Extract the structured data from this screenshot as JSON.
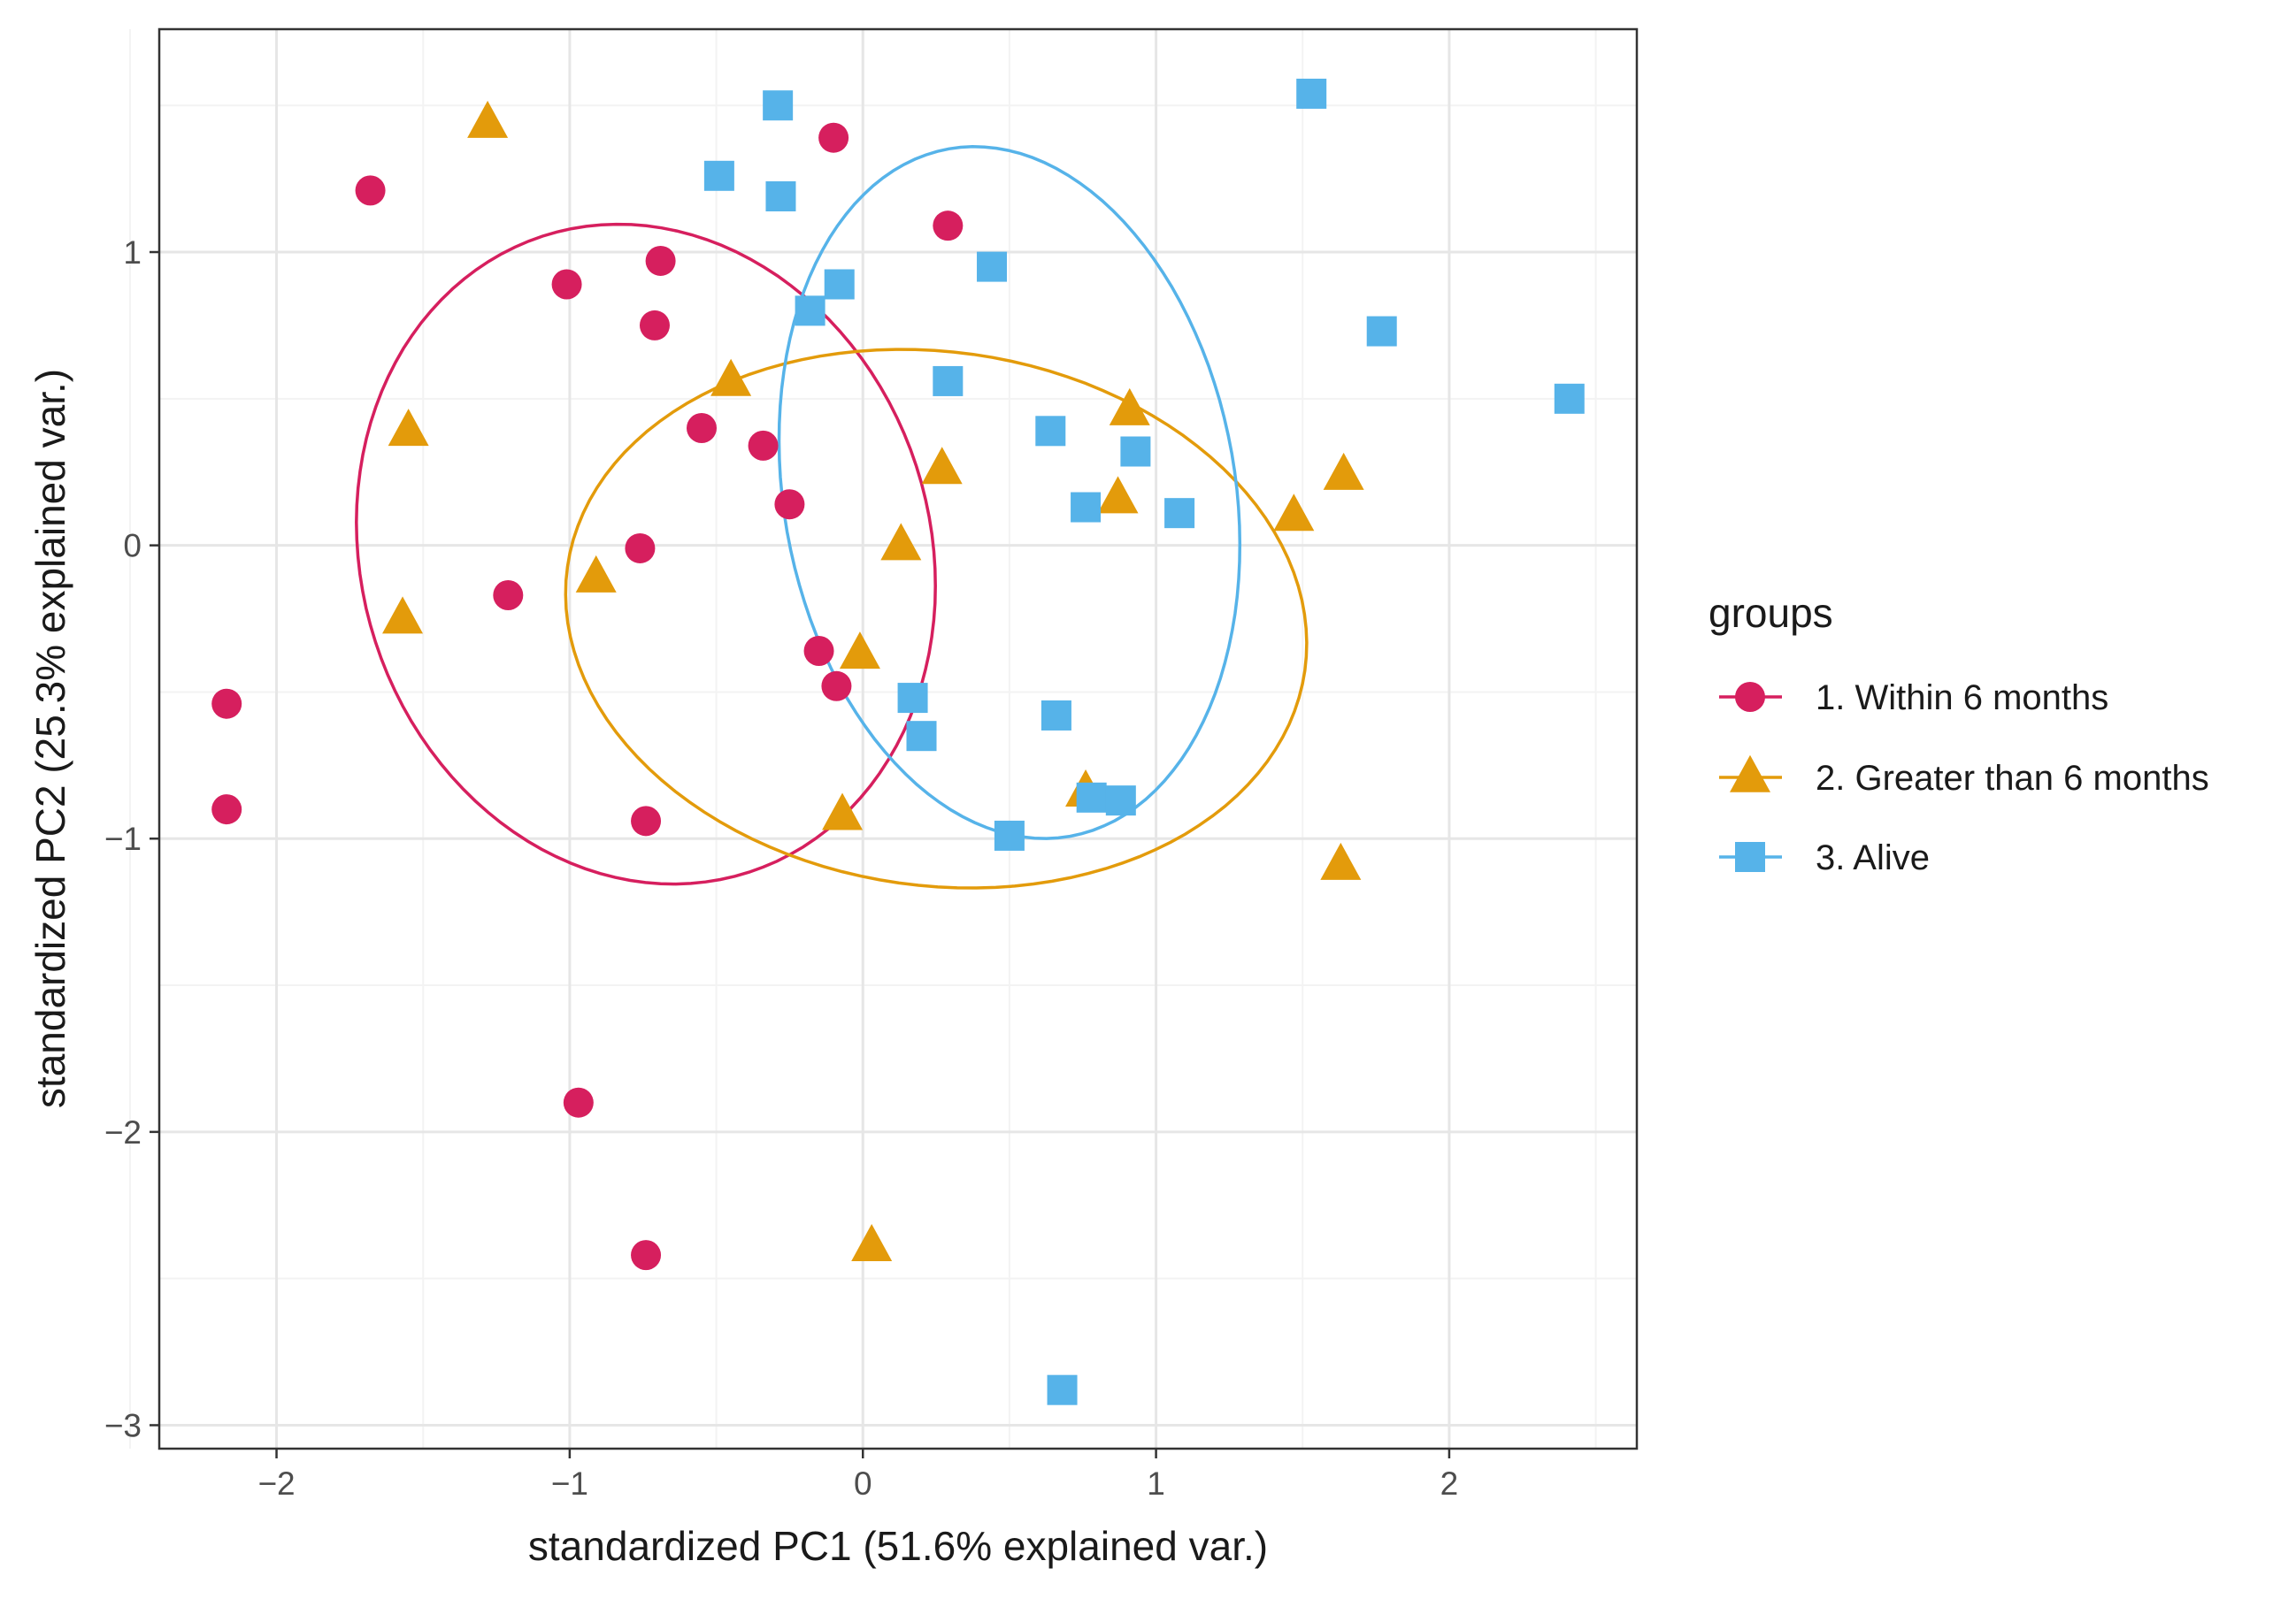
{
  "colors": {
    "group1": "#d61f5e",
    "group2": "#e39b0b",
    "group3": "#56b3e9",
    "grid_major": "#e6e6e6",
    "grid_minor": "#f3f3f3",
    "border": "#333333",
    "tick_text": "#4d4d4d",
    "axis_title": "#1a1a1a"
  },
  "chart_data": {
    "type": "scatter",
    "title": "",
    "xlabel": "standardized PC1 (51.6% explained var.)",
    "ylabel": "standardized PC2 (25.3% explained var.)",
    "xlim": [
      -2.4,
      2.64
    ],
    "ylim": [
      -3.08,
      1.76
    ],
    "xticks": [
      -2,
      -1,
      0,
      1,
      2
    ],
    "yticks": [
      1,
      0,
      -1,
      -2,
      -3
    ],
    "xtick_labels": [
      "−2",
      "−1",
      "0",
      "1",
      "2"
    ],
    "ytick_labels": [
      "1",
      "0",
      "−1",
      "−2",
      "−3"
    ],
    "grid": true,
    "legend": {
      "title": "groups",
      "position": "right",
      "entries": [
        "1. Within 6 months",
        "2. Greater than 6 months",
        "3. Alive"
      ]
    },
    "series": [
      {
        "name": "1. Within 6 months",
        "marker": "circle",
        "color_key": "group1",
        "points": [
          [
            -1.68,
            1.21
          ],
          [
            -0.1,
            1.39
          ],
          [
            0.29,
            1.09
          ],
          [
            -1.01,
            0.89
          ],
          [
            -0.69,
            0.97
          ],
          [
            -0.71,
            0.75
          ],
          [
            -0.55,
            0.4
          ],
          [
            -0.34,
            0.34
          ],
          [
            -0.25,
            0.14
          ],
          [
            -1.21,
            -0.17
          ],
          [
            -0.76,
            -0.01
          ],
          [
            -2.17,
            -0.54
          ],
          [
            -2.17,
            -0.9
          ],
          [
            -0.15,
            -0.36
          ],
          [
            -0.09,
            -0.48
          ],
          [
            -0.74,
            -0.94
          ],
          [
            -0.97,
            -1.9
          ],
          [
            -0.74,
            -2.42
          ]
        ],
        "ellipse": {
          "cx": -0.74,
          "cy": -0.03,
          "rx": 0.97,
          "ry": 1.14,
          "angle_deg": 18
        }
      },
      {
        "name": "2. Greater than 6 months",
        "marker": "triangle",
        "color_key": "group2",
        "points": [
          [
            -1.28,
            1.44
          ],
          [
            -1.55,
            0.39
          ],
          [
            -0.45,
            0.56
          ],
          [
            -1.57,
            -0.25
          ],
          [
            -0.91,
            -0.11
          ],
          [
            0.13,
            0.0
          ],
          [
            0.27,
            0.26
          ],
          [
            0.91,
            0.46
          ],
          [
            0.87,
            0.16
          ],
          [
            1.64,
            0.24
          ],
          [
            1.47,
            0.1
          ],
          [
            -0.01,
            -0.37
          ],
          [
            -0.07,
            -0.92
          ],
          [
            0.76,
            -0.84
          ],
          [
            1.63,
            -1.09
          ],
          [
            0.03,
            -2.39
          ]
        ],
        "ellipse": {
          "cx": 0.25,
          "cy": -0.25,
          "rx": 1.27,
          "ry": 0.91,
          "angle_deg": -8
        }
      },
      {
        "name": "3. Alive",
        "marker": "square",
        "color_key": "group3",
        "points": [
          [
            -0.29,
            1.5
          ],
          [
            -0.49,
            1.26
          ],
          [
            -0.28,
            1.19
          ],
          [
            1.53,
            1.54
          ],
          [
            0.44,
            0.95
          ],
          [
            -0.08,
            0.89
          ],
          [
            -0.18,
            0.8
          ],
          [
            1.77,
            0.73
          ],
          [
            2.41,
            0.5
          ],
          [
            0.29,
            0.56
          ],
          [
            0.64,
            0.39
          ],
          [
            0.93,
            0.32
          ],
          [
            0.76,
            0.13
          ],
          [
            1.08,
            0.11
          ],
          [
            0.17,
            -0.52
          ],
          [
            0.2,
            -0.65
          ],
          [
            0.66,
            -0.58
          ],
          [
            0.78,
            -0.86
          ],
          [
            0.88,
            -0.87
          ],
          [
            0.5,
            -0.99
          ],
          [
            0.68,
            -2.88
          ]
        ],
        "ellipse": {
          "cx": 0.5,
          "cy": 0.18,
          "rx": 0.77,
          "ry": 1.19,
          "angle_deg": 10
        }
      }
    ]
  }
}
